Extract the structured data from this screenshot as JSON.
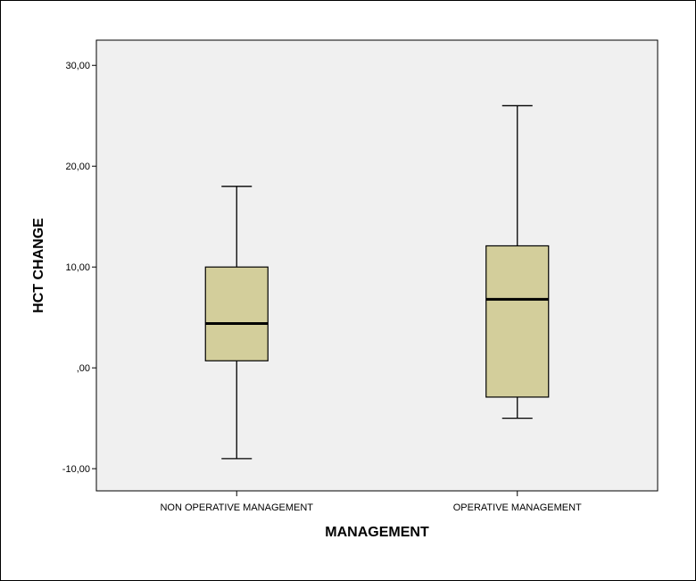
{
  "chart_data": {
    "type": "boxplot",
    "xlabel": "MANAGEMENT",
    "ylabel": "HCT CHANGE",
    "ylim": [
      -12.2,
      32.5
    ],
    "yticks": [
      -10,
      0,
      10,
      20,
      30
    ],
    "ytick_labels": [
      "-10,00",
      ",00",
      "10,00",
      "20,00",
      "30,00"
    ],
    "categories": [
      "NON OPERATIVE MANAGEMENT",
      "OPERATIVE MANAGEMENT"
    ],
    "boxes": [
      {
        "category": "NON OPERATIVE MANAGEMENT",
        "min": -9.0,
        "q1": 0.7,
        "median": 4.4,
        "q3": 10.0,
        "max": 18.0
      },
      {
        "category": "OPERATIVE MANAGEMENT",
        "min": -5.0,
        "q1": -2.9,
        "median": 6.8,
        "q3": 12.1,
        "max": 26.0
      }
    ],
    "grid": false,
    "colors": {
      "plot_bg": "#f0f0f0",
      "box_fill": "#d3ce9b",
      "stroke": "#000000"
    }
  }
}
